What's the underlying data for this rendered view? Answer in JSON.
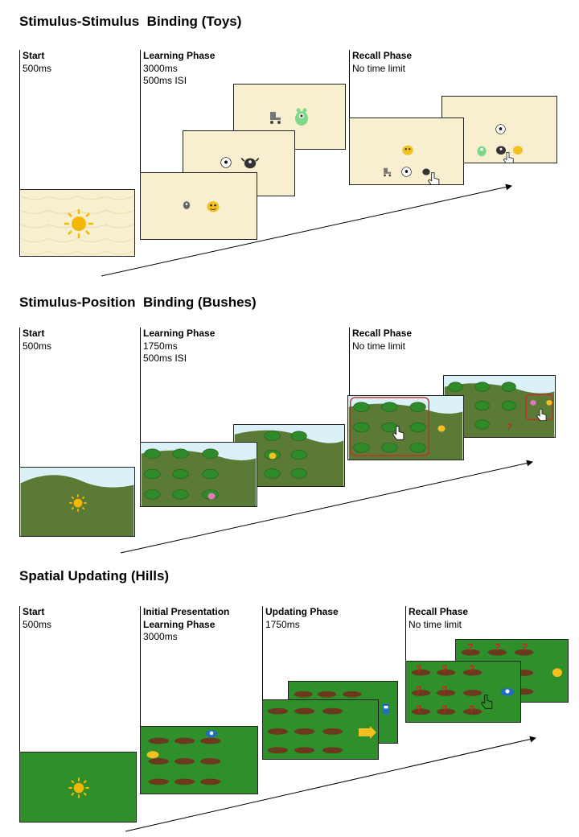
{
  "sections": [
    {
      "title": "Stimulus-Stimulus  Binding (Toys)",
      "phases": [
        {
          "name": "Start",
          "lines": [
            "500ms"
          ]
        },
        {
          "name": "Learning Phase",
          "lines": [
            "3000ms",
            "500ms ISI"
          ]
        },
        {
          "name": "Recall Phase",
          "lines": [
            "No time limit"
          ]
        }
      ]
    },
    {
      "title": "Stimulus-Position  Binding (Bushes)",
      "phases": [
        {
          "name": "Start",
          "lines": [
            "500ms"
          ]
        },
        {
          "name": "Learning Phase",
          "lines": [
            "1750ms",
            "500ms ISI"
          ]
        },
        {
          "name": "Recall Phase",
          "lines": [
            "No time limit"
          ]
        }
      ]
    },
    {
      "title": "Spatial Updating (Hills)",
      "phases": [
        {
          "name": "Start",
          "lines": [
            "500ms"
          ]
        },
        {
          "name": "Initial Presentation",
          "name2": "Learning Phase",
          "lines": [
            "3000ms"
          ]
        },
        {
          "name": "Updating Phase",
          "lines": [
            "1750ms"
          ]
        },
        {
          "name": "Recall Phase",
          "lines": [
            "No time limit"
          ]
        }
      ]
    }
  ],
  "icons": {
    "sun": "sun-icon",
    "ball": "soccer-ball-icon",
    "monster": "monster-icon",
    "skate": "roller-skate-icon",
    "hand": "pointer-hand-icon",
    "question": "question-mark-icon",
    "direction": "direction-arrow-icon"
  },
  "colors": {
    "sun": "#f5b800",
    "toy_bg": "#f7efcf",
    "sky": "#d9f1f7",
    "hill": "#5a7a35",
    "grass": "#2f8f2a",
    "mound": "#6b3a1e",
    "question": "#d0202a",
    "highlight": "#c0302a",
    "yellow_monster": "#f4c020",
    "pink_monster": "#e07ab8",
    "blue_monster": "#1f6fc0",
    "green_monster": "#7fd88a"
  }
}
